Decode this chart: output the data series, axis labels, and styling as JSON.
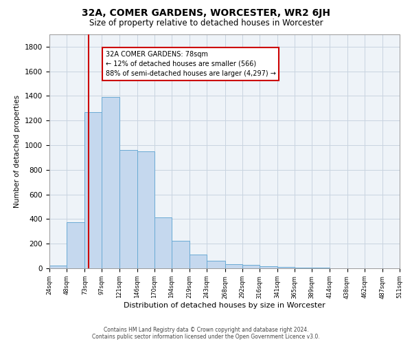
{
  "title": "32A, COMER GARDENS, WORCESTER, WR2 6JH",
  "subtitle": "Size of property relative to detached houses in Worcester",
  "xlabel": "Distribution of detached houses by size in Worcester",
  "ylabel": "Number of detached properties",
  "property_size": 78,
  "property_label": "32A COMER GARDENS: 78sqm",
  "annotation_line1": "← 12% of detached houses are smaller (566)",
  "annotation_line2": "88% of semi-detached houses are larger (4,297) →",
  "footer_line1": "Contains HM Land Registry data © Crown copyright and database right 2024.",
  "footer_line2": "Contains public sector information licensed under the Open Government Licence v3.0.",
  "bar_color": "#c5d8ee",
  "bar_edge_color": "#6aaad4",
  "red_line_color": "#cc0000",
  "annotation_box_color": "#cc0000",
  "grid_color": "#c8d4e0",
  "bin_edges": [
    24,
    48,
    73,
    97,
    121,
    146,
    170,
    194,
    219,
    243,
    268,
    292,
    316,
    341,
    365,
    389,
    414,
    438,
    462,
    487,
    511
  ],
  "bar_heights": [
    25,
    375,
    1270,
    1390,
    960,
    950,
    415,
    225,
    110,
    60,
    35,
    30,
    15,
    10,
    5,
    5,
    2,
    1,
    1,
    1
  ],
  "ylim": [
    0,
    1900
  ],
  "yticks": [
    0,
    200,
    400,
    600,
    800,
    1000,
    1200,
    1400,
    1600,
    1800
  ]
}
